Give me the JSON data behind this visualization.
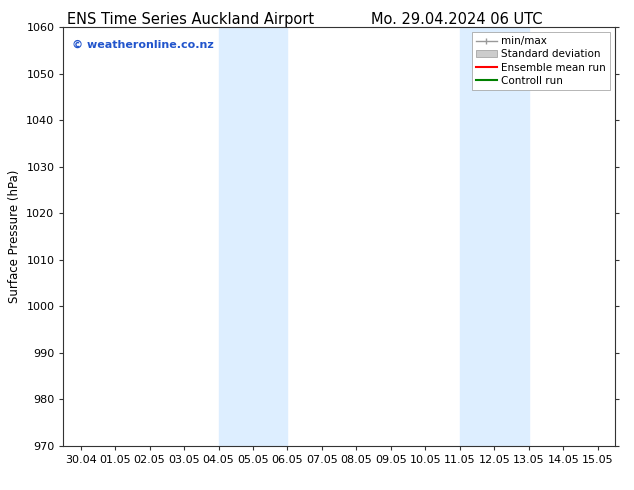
{
  "title_left": "ENS Time Series Auckland Airport",
  "title_right": "Mo. 29.04.2024 06 UTC",
  "ylabel": "Surface Pressure (hPa)",
  "ylim": [
    970,
    1060
  ],
  "yticks": [
    970,
    980,
    990,
    1000,
    1010,
    1020,
    1030,
    1040,
    1050,
    1060
  ],
  "xtick_labels": [
    "30.04",
    "01.05",
    "02.05",
    "03.05",
    "04.05",
    "05.05",
    "06.05",
    "07.05",
    "08.05",
    "09.05",
    "10.05",
    "11.05",
    "12.05",
    "13.05",
    "14.05",
    "15.05"
  ],
  "shaded_bands": [
    {
      "xstart": 4.0,
      "xend": 6.0
    },
    {
      "xstart": 11.0,
      "xend": 13.0
    }
  ],
  "shade_color": "#ddeeff",
  "watermark_text": "© weatheronline.co.nz",
  "watermark_color": "#2255cc",
  "legend_entries": [
    {
      "label": "min/max",
      "color": "#999999"
    },
    {
      "label": "Standard deviation",
      "color": "#cccccc"
    },
    {
      "label": "Ensemble mean run",
      "color": "red"
    },
    {
      "label": "Controll run",
      "color": "green"
    }
  ],
  "background_color": "#ffffff",
  "plot_bg_color": "#ffffff",
  "tick_color": "#333333",
  "spine_color": "#333333",
  "title_fontsize": 10.5,
  "ylabel_fontsize": 8.5,
  "tick_fontsize": 8,
  "watermark_fontsize": 8,
  "legend_fontsize": 7.5
}
